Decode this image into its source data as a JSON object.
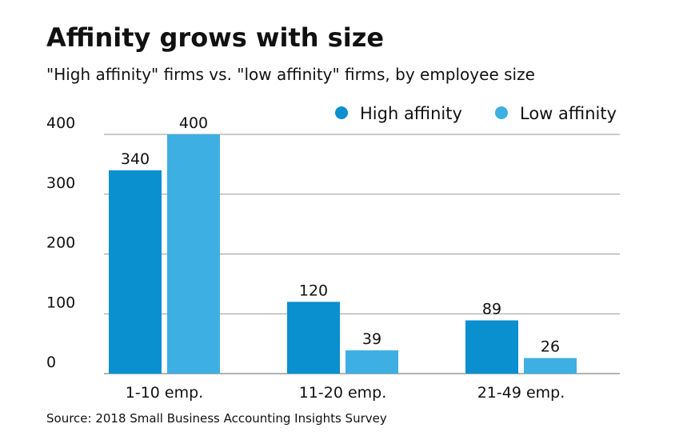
{
  "chart_data": {
    "type": "bar",
    "title": "Affinity grows with size",
    "subtitle": "\"High affinity\" firms vs. \"low affinity\" firms, by employee size",
    "source": "Source: 2018 Small Business Accounting Insights Survey",
    "categories": [
      "1-10 emp.",
      "11-20 emp.",
      "21-49 emp."
    ],
    "series": [
      {
        "name": "High affinity",
        "color": "#0a8fcf",
        "values": [
          340,
          120,
          89
        ]
      },
      {
        "name": "Low affinity",
        "color": "#3eafe2",
        "values": [
          400,
          39,
          26
        ]
      }
    ],
    "ylim": [
      0,
      400
    ],
    "yticks": [
      0,
      100,
      200,
      300,
      400
    ],
    "grid": true,
    "legend": "top-right"
  }
}
